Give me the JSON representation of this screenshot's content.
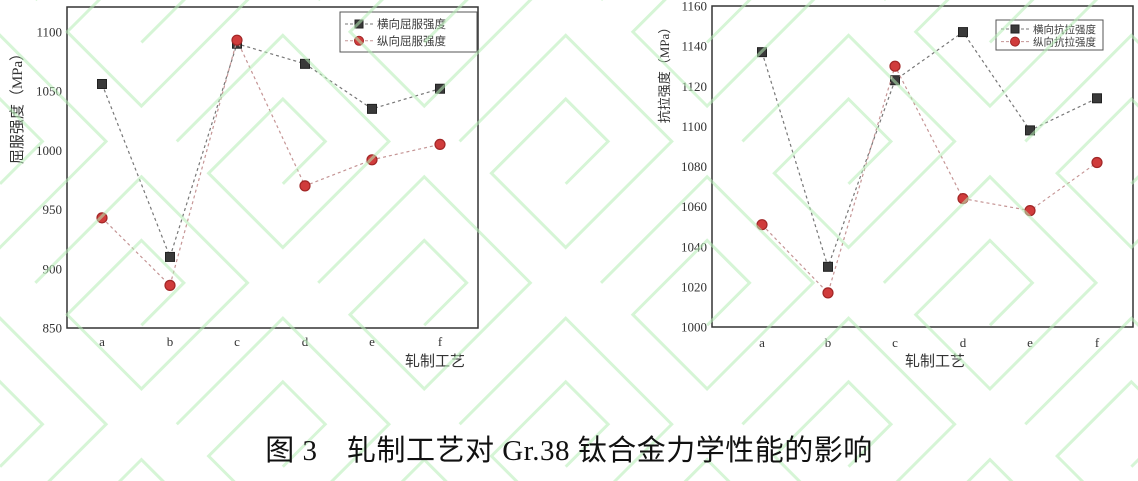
{
  "figure_caption": "图 3　轧制工艺对 Gr.38 钛合金力学性能的影响",
  "watermark": {
    "name": "green-maze-watermark",
    "color": "#b5edb5"
  },
  "chart_data": [
    {
      "type": "line",
      "title": "",
      "xlabel": "轧制工艺",
      "ylabel": "屈服强度（MPa）",
      "categories": [
        "a",
        "b",
        "c",
        "d",
        "e",
        "f"
      ],
      "ylim": [
        850,
        1121
      ],
      "yticks": [
        850,
        900,
        950,
        1000,
        1050,
        1100
      ],
      "grid": false,
      "legend_position": "top-right-inside",
      "series": [
        {
          "name": "横向屈服强度",
          "marker": "square",
          "marker_color": "#3a3a3a",
          "marker_edge": "#222222",
          "line_color": "#777777",
          "values": [
            1056,
            910,
            1090,
            1073,
            1035,
            1052
          ]
        },
        {
          "name": "纵向屈服强度",
          "marker": "circle",
          "marker_color": "#d03c3c",
          "marker_edge": "#a12626",
          "line_color": "#c59595",
          "values": [
            943,
            886,
            1093,
            970,
            992,
            1005
          ]
        }
      ]
    },
    {
      "type": "line",
      "title": "",
      "xlabel": "轧制工艺",
      "ylabel": "抗拉强度（MPa）",
      "categories": [
        "a",
        "b",
        "c",
        "d",
        "e",
        "f"
      ],
      "ylim": [
        1000,
        1160
      ],
      "yticks": [
        1000,
        1020,
        1040,
        1060,
        1080,
        1100,
        1120,
        1140,
        1160
      ],
      "grid": false,
      "legend_position": "top-right-inside",
      "series": [
        {
          "name": "横向抗拉强度",
          "marker": "square",
          "marker_color": "#3a3a3a",
          "marker_edge": "#222222",
          "line_color": "#777777",
          "values": [
            1137,
            1030,
            1123,
            1147,
            1098,
            1114
          ]
        },
        {
          "name": "纵向抗拉强度",
          "marker": "circle",
          "marker_color": "#d03c3c",
          "marker_edge": "#a12626",
          "line_color": "#c59595",
          "values": [
            1051,
            1017,
            1130,
            1064,
            1058,
            1082
          ]
        }
      ]
    }
  ]
}
